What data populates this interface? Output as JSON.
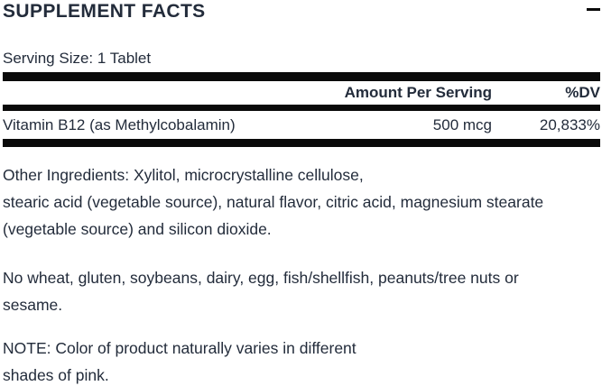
{
  "colors": {
    "text": "#232c3b",
    "bar": "#0a0a0a"
  },
  "header": {
    "title": "SUPPLEMENT FACTS",
    "collapse_icon": "minus"
  },
  "facts": {
    "serving_size": "Serving Size: 1 Tablet",
    "columns": {
      "amount": "Amount Per Serving",
      "dv": "%DV"
    },
    "rows": [
      {
        "name": "Vitamin B12 (as Methylcobalamin)",
        "amount": "500 mcg",
        "dv": "20,833%"
      }
    ],
    "other_ingredients": {
      "lines": [
        "Other Ingredients: Xylitol, microcrystalline cellulose,",
        "stearic acid (vegetable source), natural flavor, citric acid, magnesium stearate",
        "(vegetable source) and silicon dioxide."
      ]
    },
    "allergen_statement": {
      "lines": [
        "No wheat, gluten, soybeans, dairy, egg, fish/shellfish, peanuts/tree nuts or",
        "sesame."
      ]
    },
    "note": {
      "lines": [
        "NOTE: Color of product naturally varies in different",
        "shades of pink."
      ]
    }
  }
}
